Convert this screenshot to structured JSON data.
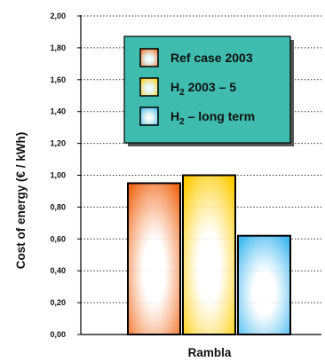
{
  "chart_data": {
    "type": "bar",
    "categories": [
      "Rambla"
    ],
    "series": [
      {
        "name": "Ref case 2003",
        "values": [
          0.95
        ],
        "color": "#f26a1b"
      },
      {
        "name": "H2 2003 – 5",
        "values": [
          1.0
        ],
        "color": "#ffcc00"
      },
      {
        "name": "H2 – long term",
        "values": [
          0.62
        ],
        "color": "#3fb8f0"
      }
    ],
    "xlabel": "Rambla",
    "ylabel": "Cost of energy (€ / kWh)",
    "ylim": [
      0,
      2.0
    ],
    "y_ticks": [
      "0,00",
      "0,20",
      "0,40",
      "0,60",
      "0,80",
      "1,00",
      "1,20",
      "1,40",
      "1,60",
      "1,80",
      "2,00"
    ],
    "grid": "dotted-horizontal",
    "legend": {
      "placement": "top-center",
      "background": "#3fbcae",
      "entries": [
        {
          "prefix": "Ref case 2003",
          "sub": "",
          "suffix": ""
        },
        {
          "prefix": "H",
          "sub": "2",
          "suffix": " 2003 – 5"
        },
        {
          "prefix": "H",
          "sub": "2",
          "suffix": " – long term"
        }
      ]
    }
  }
}
